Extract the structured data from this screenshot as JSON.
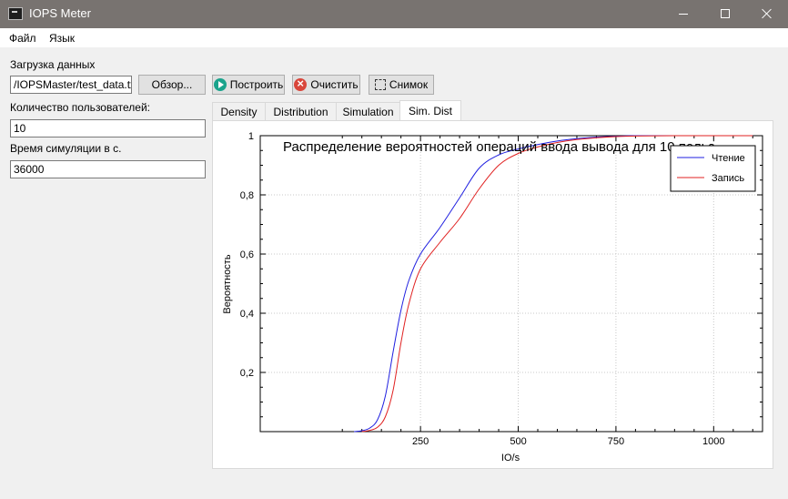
{
  "window": {
    "title": "IOPS Meter",
    "icon": "app-terminal-icon"
  },
  "menu": [
    {
      "label": "Файл"
    },
    {
      "label": "Язык"
    }
  ],
  "load": {
    "label": "Загрузка данных",
    "path_value": "/IOPSMaster/test_data.txt",
    "browse_label": "Обзор...",
    "build_label": "Построить",
    "clear_label": "Очистить",
    "snapshot_label": "Снимок"
  },
  "users": {
    "label": "Количество пользователей:",
    "value": "10"
  },
  "simtime": {
    "label": "Время симуляции в с.",
    "value": "36000"
  },
  "tabs": [
    {
      "label": "Density",
      "active": false
    },
    {
      "label": "Distribution",
      "active": false
    },
    {
      "label": "Simulation",
      "active": false
    },
    {
      "label": "Sim. Dist",
      "active": true
    }
  ],
  "chart_data": {
    "type": "line",
    "title": "Распределение вероятностей операций ввода вывода для 10 польз",
    "xlabel": "IO/s",
    "ylabel": "Вероятность",
    "xlim": [
      -160,
      1125
    ],
    "ylim": [
      0,
      1
    ],
    "x_ticks": [
      250,
      500,
      750,
      1000
    ],
    "x_tick_labels": [
      "250",
      "500",
      "750",
      "1000"
    ],
    "y_ticks": [
      0.2,
      0.4,
      0.6,
      0.8,
      1.0
    ],
    "y_tick_labels": [
      "0,2",
      "0,4",
      "0,6",
      "0,8",
      "1"
    ],
    "grid": true,
    "legend_position": "top-right",
    "series": [
      {
        "name": "Чтение",
        "color": "#1f1fe0",
        "x": [
          80,
          100,
          120,
          140,
          160,
          180,
          200,
          220,
          250,
          300,
          350,
          400,
          450,
          500,
          550,
          600,
          650,
          700,
          750,
          800,
          900,
          1000,
          1100
        ],
        "y": [
          0,
          0.003,
          0.012,
          0.04,
          0.12,
          0.27,
          0.41,
          0.51,
          0.6,
          0.69,
          0.79,
          0.89,
          0.935,
          0.955,
          0.97,
          0.982,
          0.99,
          0.995,
          0.998,
          1,
          1,
          1,
          1
        ]
      },
      {
        "name": "Запись",
        "color": "#e02020",
        "x": [
          100,
          120,
          140,
          160,
          180,
          200,
          220,
          250,
          300,
          350,
          400,
          450,
          500,
          550,
          600,
          650,
          700,
          750,
          800,
          900,
          1000,
          1100
        ],
        "y": [
          0,
          0.004,
          0.015,
          0.05,
          0.14,
          0.3,
          0.43,
          0.55,
          0.64,
          0.72,
          0.82,
          0.9,
          0.94,
          0.962,
          0.977,
          0.987,
          0.993,
          0.997,
          0.999,
          1,
          1,
          1
        ]
      }
    ]
  }
}
